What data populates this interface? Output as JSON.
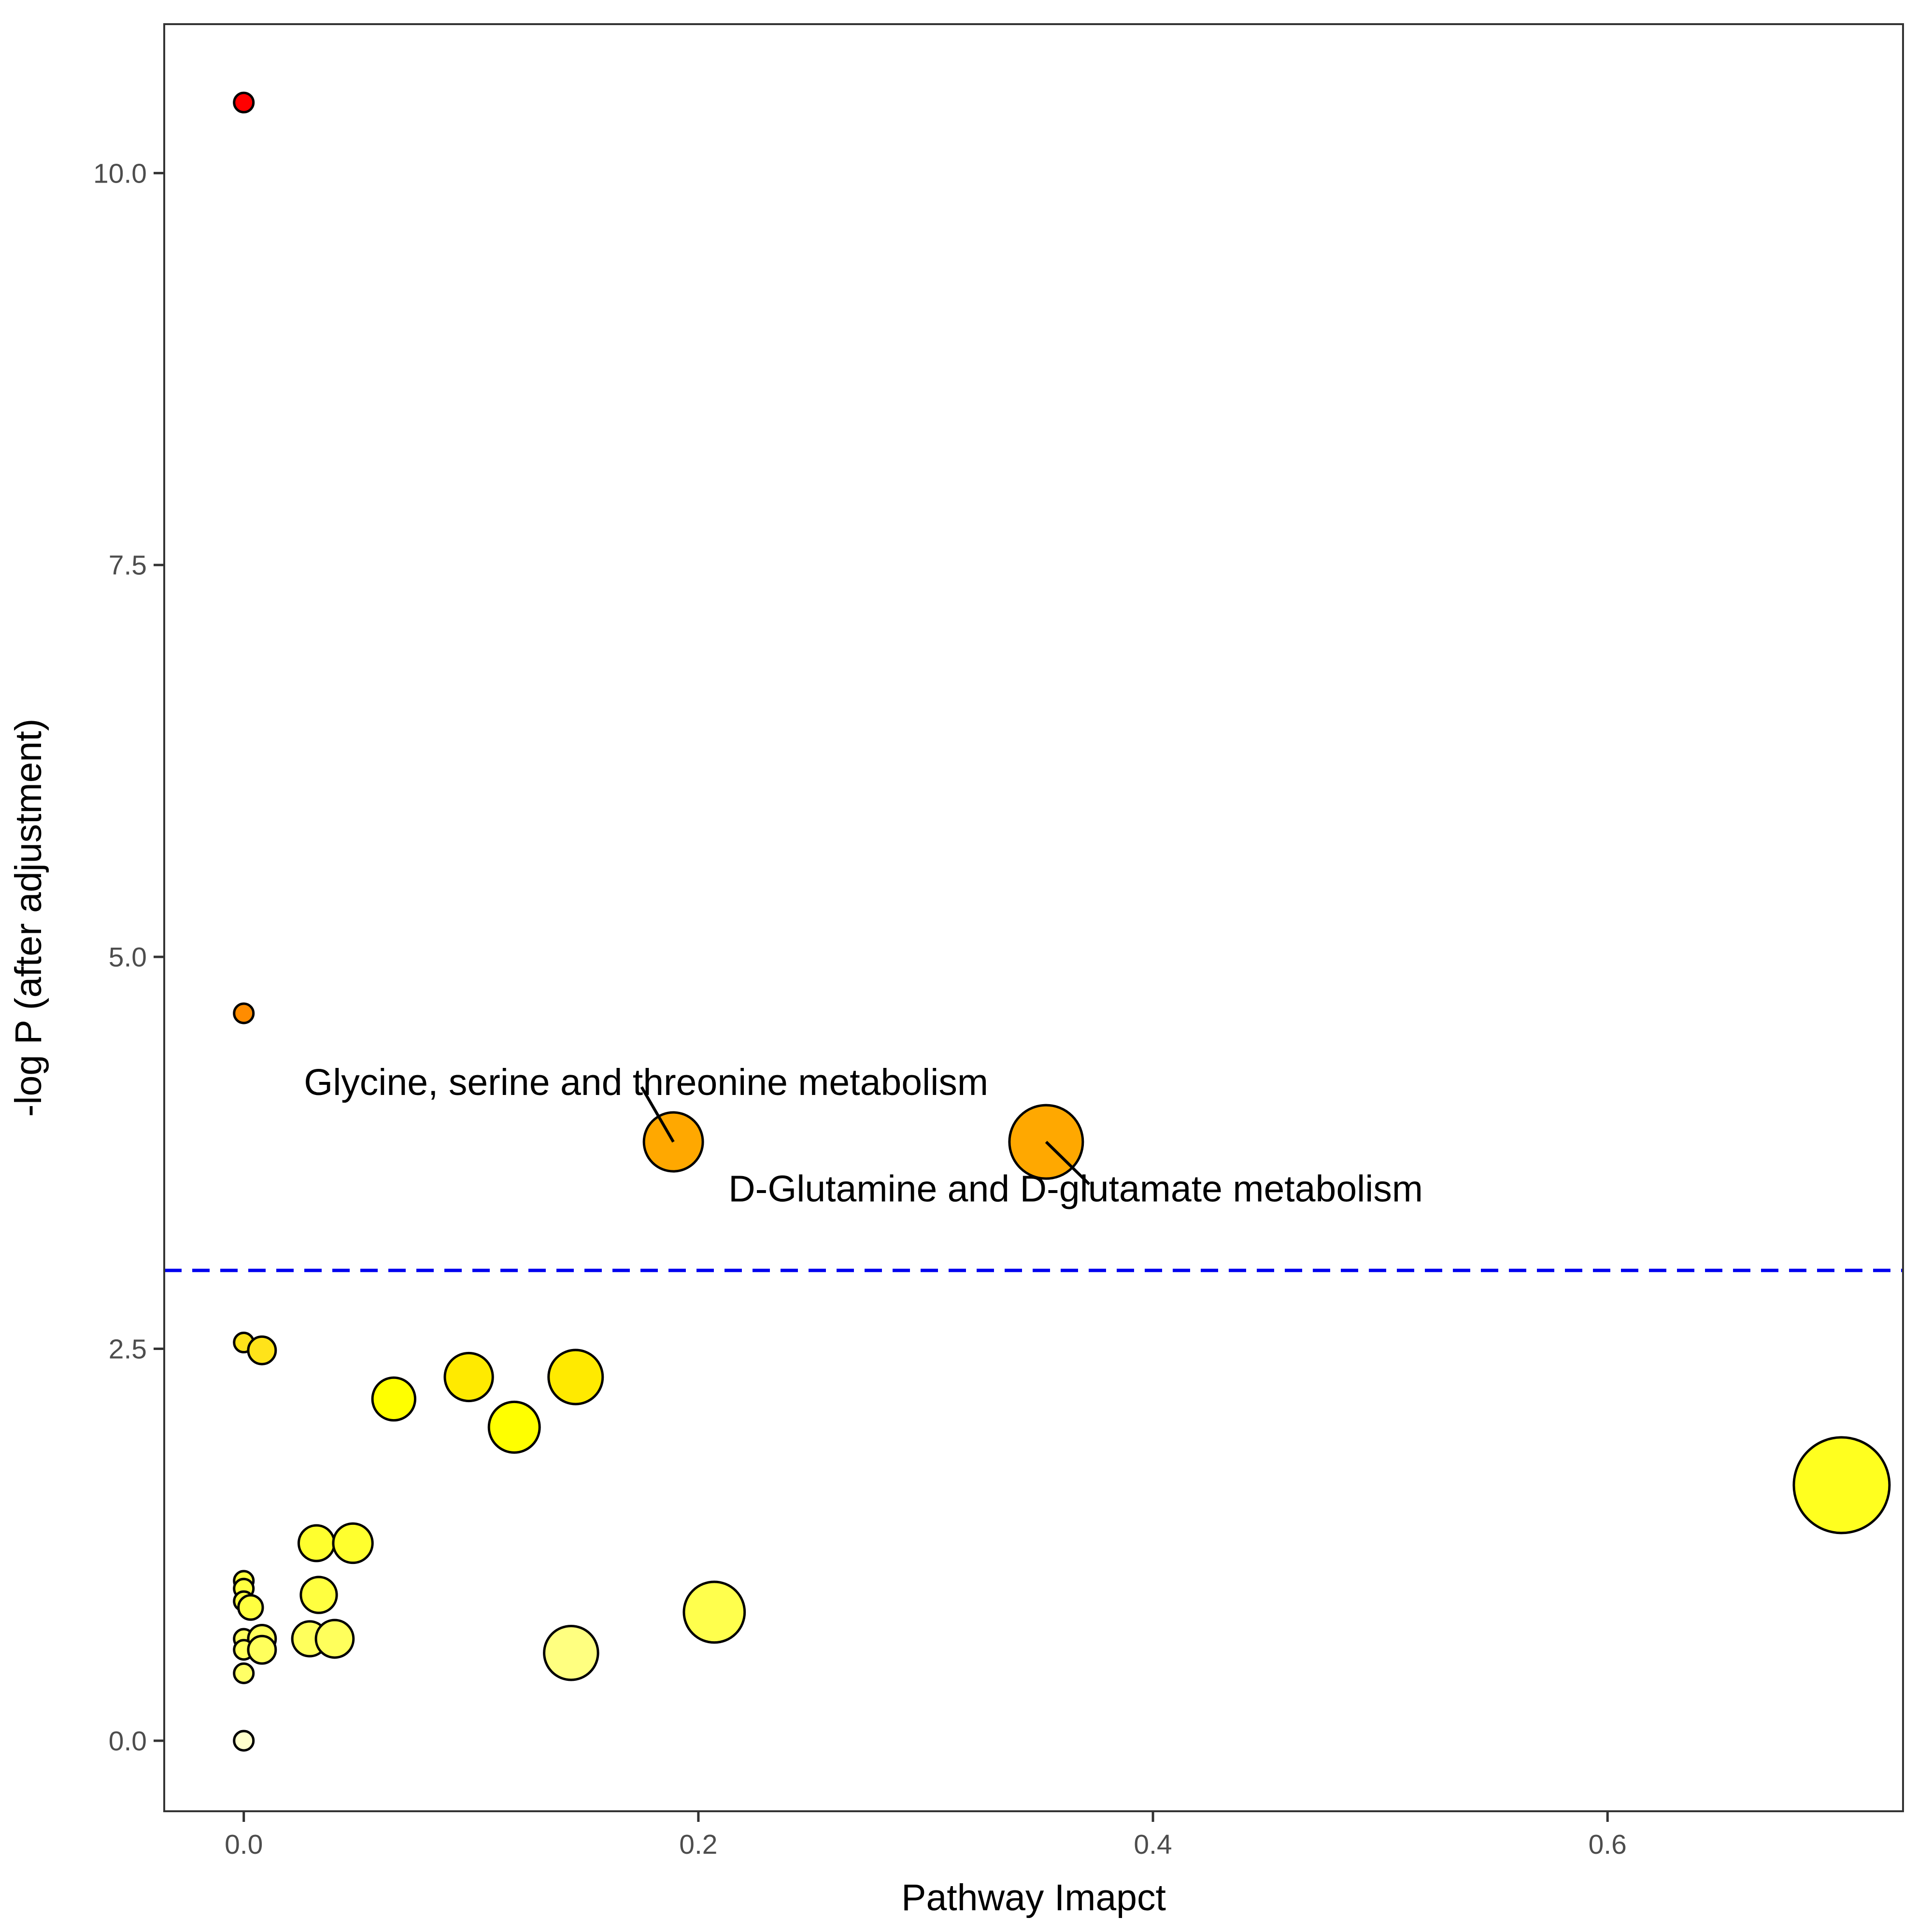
{
  "chart_data": {
    "type": "scatter",
    "title": "",
    "xlabel": "Pathway Imapct",
    "ylabel": "-log P (after adjustment)",
    "xlim": [
      -0.035,
      0.73
    ],
    "ylim": [
      -0.45,
      10.95
    ],
    "x_ticks": [
      0.0,
      0.2,
      0.4,
      0.6
    ],
    "x_tick_labels": [
      "0.0",
      "0.2",
      "0.4",
      "0.6"
    ],
    "y_ticks": [
      0.0,
      2.5,
      5.0,
      7.5,
      10.0
    ],
    "y_tick_labels": [
      "0.0",
      "2.5",
      "5.0",
      "7.5",
      "10.0"
    ],
    "grid": false,
    "legend": "none",
    "threshold_line": {
      "y": 3.0,
      "color": "#0000ee",
      "style": "dashed"
    },
    "points": [
      {
        "x": 0.0,
        "y": 10.45,
        "impact_size": 0.0,
        "color": "#ff0000"
      },
      {
        "x": 0.0,
        "y": 4.64,
        "impact_size": 0.0,
        "color": "#ff8c00"
      },
      {
        "x": 0.189,
        "y": 3.82,
        "impact_size": 0.189,
        "color": "#ffa800"
      },
      {
        "x": 0.353,
        "y": 3.82,
        "impact_size": 0.353,
        "color": "#ffa800"
      },
      {
        "x": 0.0,
        "y": 2.54,
        "impact_size": 0.0,
        "color": "#ffe31a"
      },
      {
        "x": 0.008,
        "y": 2.49,
        "impact_size": 0.008,
        "color": "#ffe31a"
      },
      {
        "x": 0.066,
        "y": 2.18,
        "impact_size": 0.066,
        "color": "#ffff00"
      },
      {
        "x": 0.099,
        "y": 2.32,
        "impact_size": 0.099,
        "color": "#ffea00"
      },
      {
        "x": 0.146,
        "y": 2.32,
        "impact_size": 0.146,
        "color": "#ffea00"
      },
      {
        "x": 0.119,
        "y": 2.0,
        "impact_size": 0.119,
        "color": "#ffff00"
      },
      {
        "x": 0.703,
        "y": 1.63,
        "impact_size": 0.703,
        "color": "#ffff1f"
      },
      {
        "x": 0.032,
        "y": 1.26,
        "impact_size": 0.032,
        "color": "#ffff2e"
      },
      {
        "x": 0.048,
        "y": 1.26,
        "impact_size": 0.048,
        "color": "#ffff2e"
      },
      {
        "x": 0.0,
        "y": 1.02,
        "impact_size": 0.0,
        "color": "#ffff40"
      },
      {
        "x": 0.0,
        "y": 0.97,
        "impact_size": 0.0,
        "color": "#ffff40"
      },
      {
        "x": 0.0,
        "y": 0.89,
        "impact_size": 0.0,
        "color": "#ffff40"
      },
      {
        "x": 0.003,
        "y": 0.85,
        "impact_size": 0.003,
        "color": "#ffff40"
      },
      {
        "x": 0.033,
        "y": 0.93,
        "impact_size": 0.033,
        "color": "#ffff40"
      },
      {
        "x": 0.207,
        "y": 0.82,
        "impact_size": 0.207,
        "color": "#ffff4d"
      },
      {
        "x": 0.0,
        "y": 0.65,
        "impact_size": 0.0,
        "color": "#ffff5c"
      },
      {
        "x": 0.008,
        "y": 0.65,
        "impact_size": 0.008,
        "color": "#ffff5c"
      },
      {
        "x": 0.0,
        "y": 0.58,
        "impact_size": 0.0,
        "color": "#ffff5c"
      },
      {
        "x": 0.008,
        "y": 0.58,
        "impact_size": 0.008,
        "color": "#ffff5c"
      },
      {
        "x": 0.029,
        "y": 0.65,
        "impact_size": 0.029,
        "color": "#ffff5c"
      },
      {
        "x": 0.04,
        "y": 0.65,
        "impact_size": 0.04,
        "color": "#ffff5c"
      },
      {
        "x": 0.144,
        "y": 0.56,
        "impact_size": 0.144,
        "color": "#ffff80"
      },
      {
        "x": 0.0,
        "y": 0.43,
        "impact_size": 0.0,
        "color": "#ffff66"
      },
      {
        "x": 0.0,
        "y": 0.0,
        "impact_size": 0.0,
        "color": "#ffffcc"
      }
    ],
    "annotations": [
      {
        "text": "Glycine, serine and threonine metabolism",
        "point": [
          0.189,
          3.82
        ],
        "label_anchor": [
          0.177,
          4.2
        ],
        "line_end": [
          0.175,
          4.17
        ]
      },
      {
        "text": "D-Glutamine and D-glutamate metabolism",
        "point": [
          0.353,
          3.82
        ],
        "label_anchor": [
          0.366,
          3.52
        ],
        "line_end": [
          0.372,
          3.55
        ]
      }
    ]
  }
}
